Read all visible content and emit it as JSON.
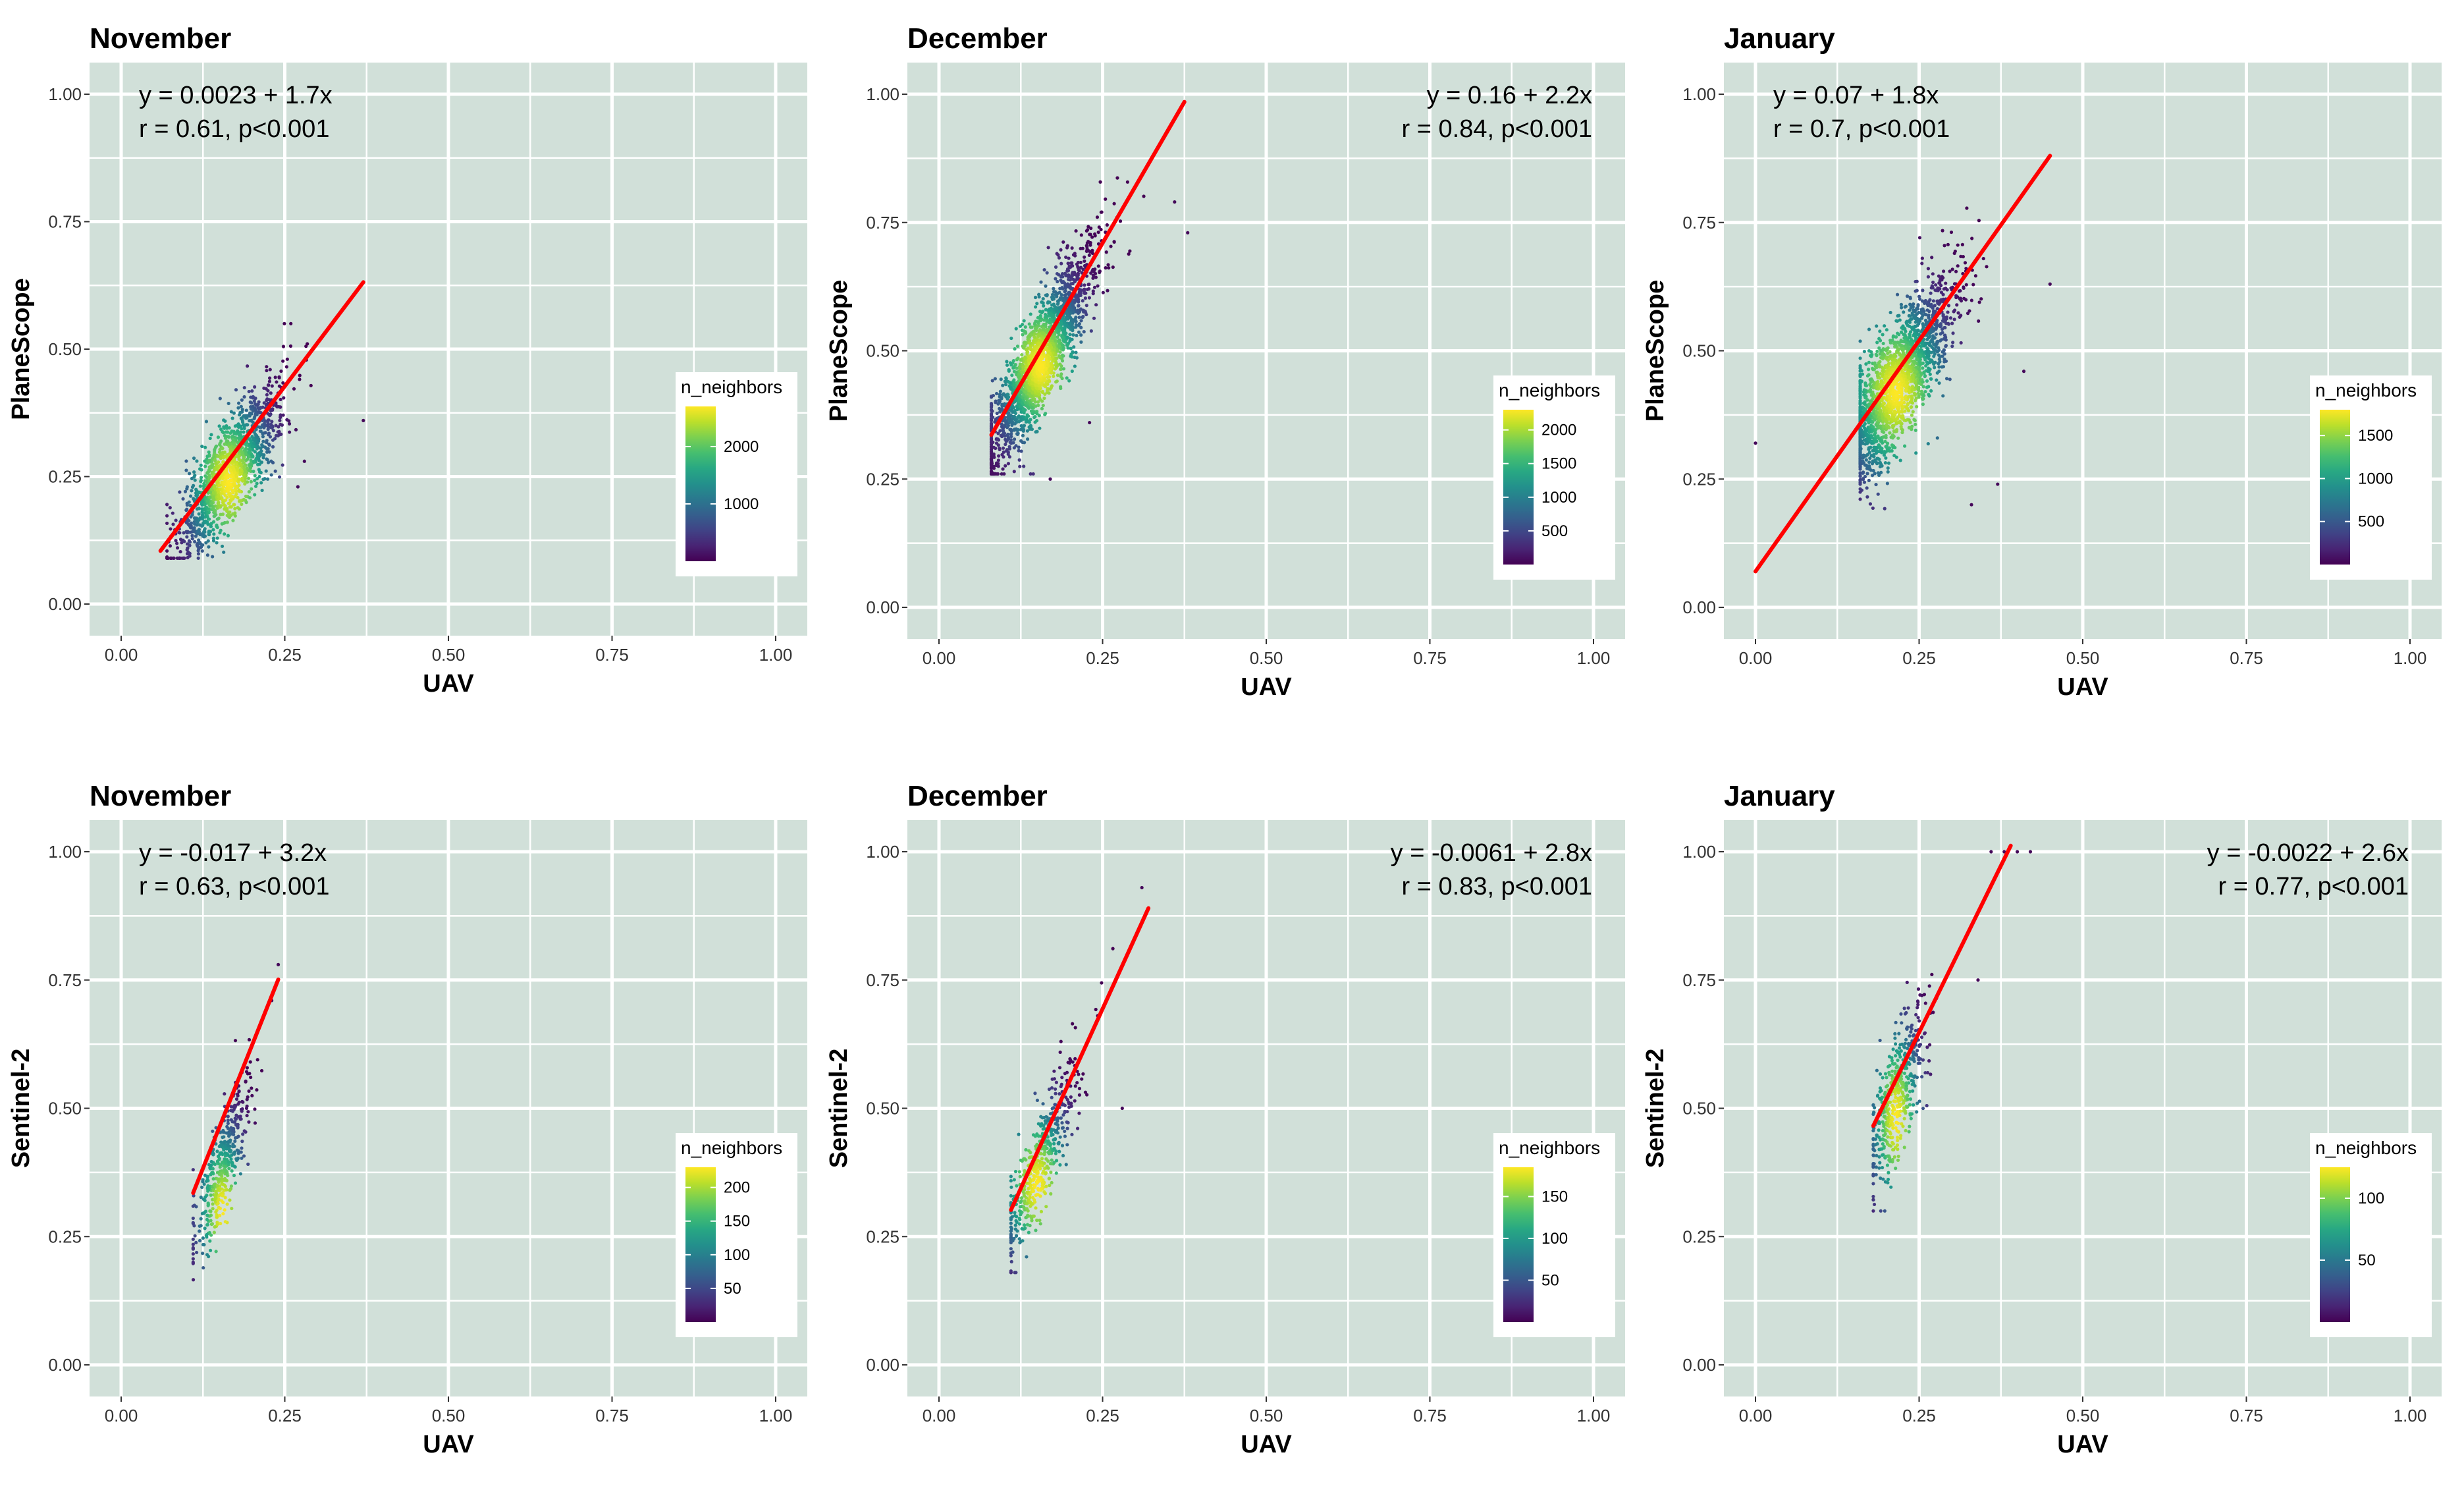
{
  "figure": {
    "background": "#ffffff",
    "panel_bg": "#d1e0d9",
    "grid_color": "#ffffff",
    "fit_color": "#ff0000"
  },
  "chart_data": [
    {
      "type": "scatter",
      "title": "November",
      "xlabel": "UAV",
      "ylabel": "PlaneScope",
      "xlim": [
        0,
        1
      ],
      "ylim": [
        0,
        1
      ],
      "xticks": [
        "0.00",
        "0.25",
        "0.50",
        "0.75",
        "1.00"
      ],
      "yticks": [
        "0.00",
        "0.25",
        "0.50",
        "0.75",
        "1.00"
      ],
      "annotation": [
        "y = 0.0023 + 1.7x",
        "r = 0.61,   p<0.001"
      ],
      "annotation_pos": "top-left",
      "fit": {
        "intercept": 0.0023,
        "slope": 1.7,
        "x_range": [
          0.06,
          0.37
        ]
      },
      "cloud": {
        "n": 1400,
        "x_center": 0.165,
        "x_sd": 0.038,
        "x_min": 0.07,
        "x_max": 0.29,
        "y_center": 0.24,
        "y_resid_sd": 0.05,
        "y_min": 0.09,
        "y_max": 0.55,
        "outliers": [
          [
            0.37,
            0.36
          ],
          [
            0.27,
            0.23
          ],
          [
            0.28,
            0.28
          ]
        ]
      },
      "legend": {
        "title": "n_neighbors",
        "ticks": [
          1000,
          2000
        ],
        "max": 2700
      }
    },
    {
      "type": "scatter",
      "title": "December",
      "xlabel": "UAV",
      "ylabel": "PlaneScope",
      "xlim": [
        0,
        1
      ],
      "ylim": [
        0,
        1
      ],
      "xticks": [
        "0.00",
        "0.25",
        "0.50",
        "0.75",
        "1.00"
      ],
      "yticks": [
        "0.00",
        "0.25",
        "0.50",
        "0.75",
        "1.00"
      ],
      "annotation": [
        "y = 0.16 + 2.2x",
        "r = 0.84,   p<0.001"
      ],
      "annotation_pos": "top-right",
      "fit": {
        "intercept": 0.16,
        "slope": 2.2,
        "x_range": [
          0.08,
          0.375
        ]
      },
      "cloud": {
        "n": 2000,
        "x_center": 0.155,
        "x_sd": 0.04,
        "x_min": 0.08,
        "x_max": 0.36,
        "y_center": 0.47,
        "y_resid_sd": 0.05,
        "y_min": 0.26,
        "y_max": 0.96,
        "outliers": [
          [
            0.38,
            0.73
          ],
          [
            0.36,
            0.79
          ],
          [
            0.23,
            0.36
          ],
          [
            0.17,
            0.25
          ]
        ]
      },
      "legend": {
        "title": "n_neighbors",
        "ticks": [
          500,
          1000,
          1500,
          2000
        ],
        "max": 2300
      }
    },
    {
      "type": "scatter",
      "title": "January",
      "xlabel": "UAV",
      "ylabel": "PlaneScope",
      "xlim": [
        0,
        1
      ],
      "ylim": [
        0,
        1
      ],
      "xticks": [
        "0.00",
        "0.25",
        "0.50",
        "0.75",
        "1.00"
      ],
      "yticks": [
        "0.00",
        "0.25",
        "0.50",
        "0.75",
        "1.00"
      ],
      "annotation": [
        "y = 0.07 + 1.8x",
        "r = 0.7,   p<0.001"
      ],
      "annotation_pos": "top-left",
      "fit": {
        "intercept": 0.07,
        "slope": 1.8,
        "x_range": [
          0.0,
          0.45
        ]
      },
      "cloud": {
        "n": 2000,
        "x_center": 0.215,
        "x_sd": 0.045,
        "x_min": 0.16,
        "x_max": 0.45,
        "y_center": 0.42,
        "y_resid_sd": 0.06,
        "y_min": 0.1,
        "y_max": 0.86,
        "outliers": [
          [
            0.0,
            0.32
          ],
          [
            0.41,
            0.46
          ],
          [
            0.45,
            0.63
          ],
          [
            0.33,
            0.2
          ],
          [
            0.37,
            0.24
          ]
        ]
      },
      "legend": {
        "title": "n_neighbors",
        "ticks": [
          500,
          1000,
          1500
        ],
        "max": 1800
      }
    },
    {
      "type": "scatter",
      "title": "November",
      "xlabel": "UAV",
      "ylabel": "Sentinel-2",
      "xlim": [
        0,
        1
      ],
      "ylim": [
        0,
        1
      ],
      "xticks": [
        "0.00",
        "0.25",
        "0.50",
        "0.75",
        "1.00"
      ],
      "yticks": [
        "0.00",
        "0.25",
        "0.50",
        "0.75",
        "1.00"
      ],
      "annotation": [
        "y = -0.017 + 3.2x",
        "r = 0.63,   p<0.001"
      ],
      "annotation_pos": "top-left",
      "fit": {
        "intercept": -0.017,
        "slope": 3.2,
        "x_range": [
          0.11,
          0.24
        ]
      },
      "cloud": {
        "n": 450,
        "x_center": 0.155,
        "x_sd": 0.022,
        "x_min": 0.11,
        "x_max": 0.24,
        "y_center": 0.3,
        "y_resid_sd": 0.05,
        "y_min": 0.15,
        "y_max": 0.78,
        "outliers": [
          [
            0.24,
            0.78
          ],
          [
            0.23,
            0.71
          ]
        ]
      },
      "legend": {
        "title": "n_neighbors",
        "ticks": [
          50,
          100,
          150,
          200
        ],
        "max": 230
      }
    },
    {
      "type": "scatter",
      "title": "December",
      "xlabel": "UAV",
      "ylabel": "Sentinel-2",
      "xlim": [
        0,
        1
      ],
      "ylim": [
        0,
        1
      ],
      "xticks": [
        "0.00",
        "0.25",
        "0.50",
        "0.75",
        "1.00"
      ],
      "yticks": [
        "0.00",
        "0.25",
        "0.50",
        "0.75",
        "1.00"
      ],
      "annotation": [
        "y = -0.0061 + 2.8x",
        "r = 0.83,   p<0.001"
      ],
      "annotation_pos": "top-right",
      "fit": {
        "intercept": -0.0061,
        "slope": 2.8,
        "x_range": [
          0.11,
          0.32
        ]
      },
      "cloud": {
        "n": 500,
        "x_center": 0.15,
        "x_sd": 0.03,
        "x_min": 0.11,
        "x_max": 0.32,
        "y_center": 0.35,
        "y_resid_sd": 0.05,
        "y_min": 0.18,
        "y_max": 0.93,
        "outliers": [
          [
            0.28,
            0.5
          ],
          [
            0.31,
            0.93
          ]
        ]
      },
      "legend": {
        "title": "n_neighbors",
        "ticks": [
          50,
          100,
          150
        ],
        "max": 185
      }
    },
    {
      "type": "scatter",
      "title": "January",
      "xlabel": "UAV",
      "ylabel": "Sentinel-2",
      "xlim": [
        0,
        1
      ],
      "ylim": [
        0,
        1
      ],
      "xticks": [
        "0.00",
        "0.25",
        "0.50",
        "0.75",
        "1.00"
      ],
      "yticks": [
        "0.00",
        "0.25",
        "0.50",
        "0.75",
        "1.00"
      ],
      "annotation": [
        "y = -0.0022 + 2.6x",
        "r = 0.77,   p<0.001"
      ],
      "annotation_pos": "top-right",
      "fit": {
        "intercept": -0.0022,
        "slope": 2.6,
        "x_range": [
          0.18,
          0.39
        ]
      },
      "cloud": {
        "n": 500,
        "x_center": 0.215,
        "x_sd": 0.022,
        "x_min": 0.18,
        "x_max": 0.42,
        "y_center": 0.48,
        "y_resid_sd": 0.06,
        "y_min": 0.3,
        "y_max": 1.0,
        "outliers": [
          [
            0.36,
            1.0
          ],
          [
            0.38,
            1.0
          ],
          [
            0.4,
            1.0
          ],
          [
            0.42,
            1.0
          ],
          [
            0.34,
            0.75
          ]
        ]
      },
      "legend": {
        "title": "n_neighbors",
        "ticks": [
          50,
          100
        ],
        "max": 125
      }
    }
  ]
}
